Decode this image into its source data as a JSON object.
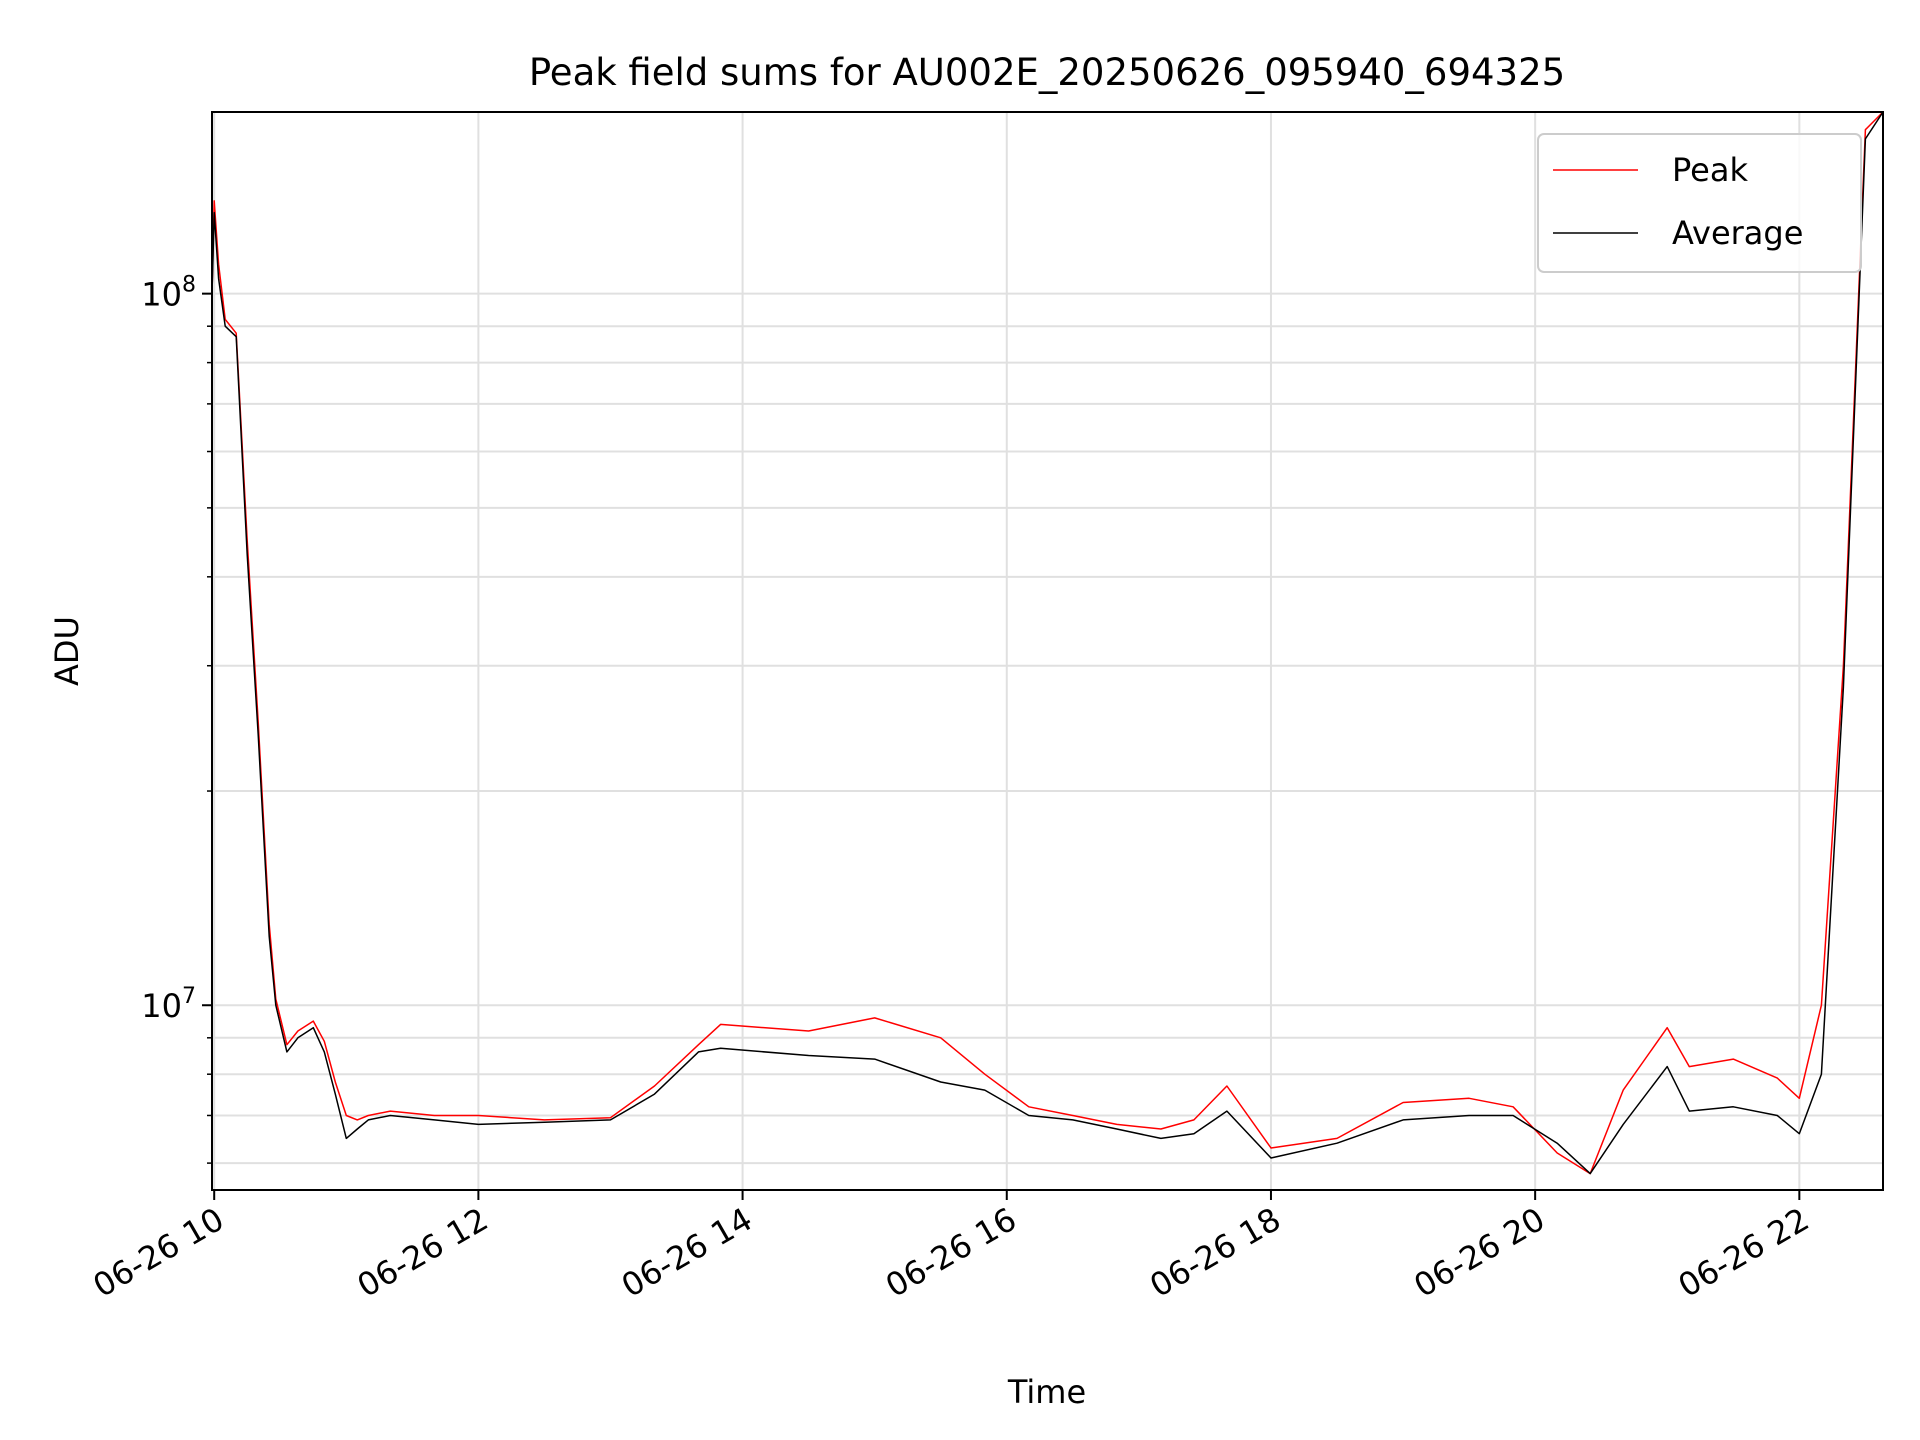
{
  "chart_data": {
    "type": "line",
    "title": "Peak field sums for AU002E_20250626_095940_694325",
    "xlabel": "Time",
    "ylabel": "ADU",
    "y_scale": "log",
    "xlim": [
      "2025-06-26 09:59",
      "2025-06-26 22:38"
    ],
    "ylim": [
      5500000,
      180000000
    ],
    "grid": true,
    "legend_position": "top-right",
    "x_tick_labels": [
      "06-26 10",
      "06-26 12",
      "06-26 14",
      "06-26 16",
      "06-26 18",
      "06-26 20",
      "06-26 22"
    ],
    "y_tick_labels": [
      {
        "base": "10",
        "exp": "7",
        "value": 10000000
      },
      {
        "base": "10",
        "exp": "8",
        "value": 100000000
      }
    ],
    "x": [
      "2025-06-26 09:59",
      "2025-06-26 10:00",
      "2025-06-26 10:02",
      "2025-06-26 10:05",
      "2025-06-26 10:10",
      "2025-06-26 10:15",
      "2025-06-26 10:20",
      "2025-06-26 10:25",
      "2025-06-26 10:28",
      "2025-06-26 10:33",
      "2025-06-26 10:38",
      "2025-06-26 10:45",
      "2025-06-26 10:50",
      "2025-06-26 10:55",
      "2025-06-26 11:00",
      "2025-06-26 11:05",
      "2025-06-26 11:10",
      "2025-06-26 11:20",
      "2025-06-26 11:40",
      "2025-06-26 12:00",
      "2025-06-26 12:30",
      "2025-06-26 13:00",
      "2025-06-26 13:20",
      "2025-06-26 13:40",
      "2025-06-26 13:50",
      "2025-06-26 14:30",
      "2025-06-26 15:00",
      "2025-06-26 15:30",
      "2025-06-26 15:50",
      "2025-06-26 16:10",
      "2025-06-26 16:30",
      "2025-06-26 16:50",
      "2025-06-26 17:10",
      "2025-06-26 17:25",
      "2025-06-26 17:40",
      "2025-06-26 18:00",
      "2025-06-26 18:30",
      "2025-06-26 19:00",
      "2025-06-26 19:30",
      "2025-06-26 19:50",
      "2025-06-26 20:10",
      "2025-06-26 20:25",
      "2025-06-26 20:40",
      "2025-06-26 21:00",
      "2025-06-26 21:10",
      "2025-06-26 21:30",
      "2025-06-26 21:50",
      "2025-06-26 22:00",
      "2025-06-26 22:10",
      "2025-06-26 22:20",
      "2025-06-26 22:30",
      "2025-06-26 22:38"
    ],
    "series": [
      {
        "name": "Peak",
        "color": "#ff0000",
        "values": [
          100000000,
          135000000,
          110000000,
          92000000,
          88000000,
          45000000,
          25000000,
          13000000,
          10200000,
          8800000,
          9200000,
          9500000,
          8900000,
          7800000,
          7000000,
          6900000,
          7000000,
          7100000,
          7000000,
          7000000,
          6900000,
          6950000,
          7700000,
          8800000,
          9400000,
          9200000,
          9600000,
          9000000,
          8000000,
          7200000,
          7000000,
          6800000,
          6700000,
          6900000,
          7700000,
          6300000,
          6500000,
          7300000,
          7400000,
          7200000,
          6200000,
          5800000,
          7600000,
          9300000,
          8200000,
          8400000,
          7900000,
          7400000,
          10000000,
          30000000,
          170000000,
          180000000
        ]
      },
      {
        "name": "Average",
        "color": "#000000",
        "values": [
          100000000,
          130000000,
          105000000,
          90000000,
          87000000,
          43000000,
          24000000,
          12500000,
          10000000,
          8600000,
          9000000,
          9300000,
          8600000,
          7500000,
          6500000,
          6700000,
          6900000,
          7000000,
          6900000,
          6800000,
          6850000,
          6900000,
          7500000,
          8600000,
          8700000,
          8500000,
          8400000,
          7800000,
          7600000,
          7000000,
          6900000,
          6700000,
          6500000,
          6600000,
          7100000,
          6100000,
          6400000,
          6900000,
          7000000,
          7000000,
          6400000,
          5800000,
          6800000,
          8200000,
          7100000,
          7200000,
          7000000,
          6600000,
          8000000,
          28000000,
          165000000,
          180000000
        ]
      }
    ]
  }
}
